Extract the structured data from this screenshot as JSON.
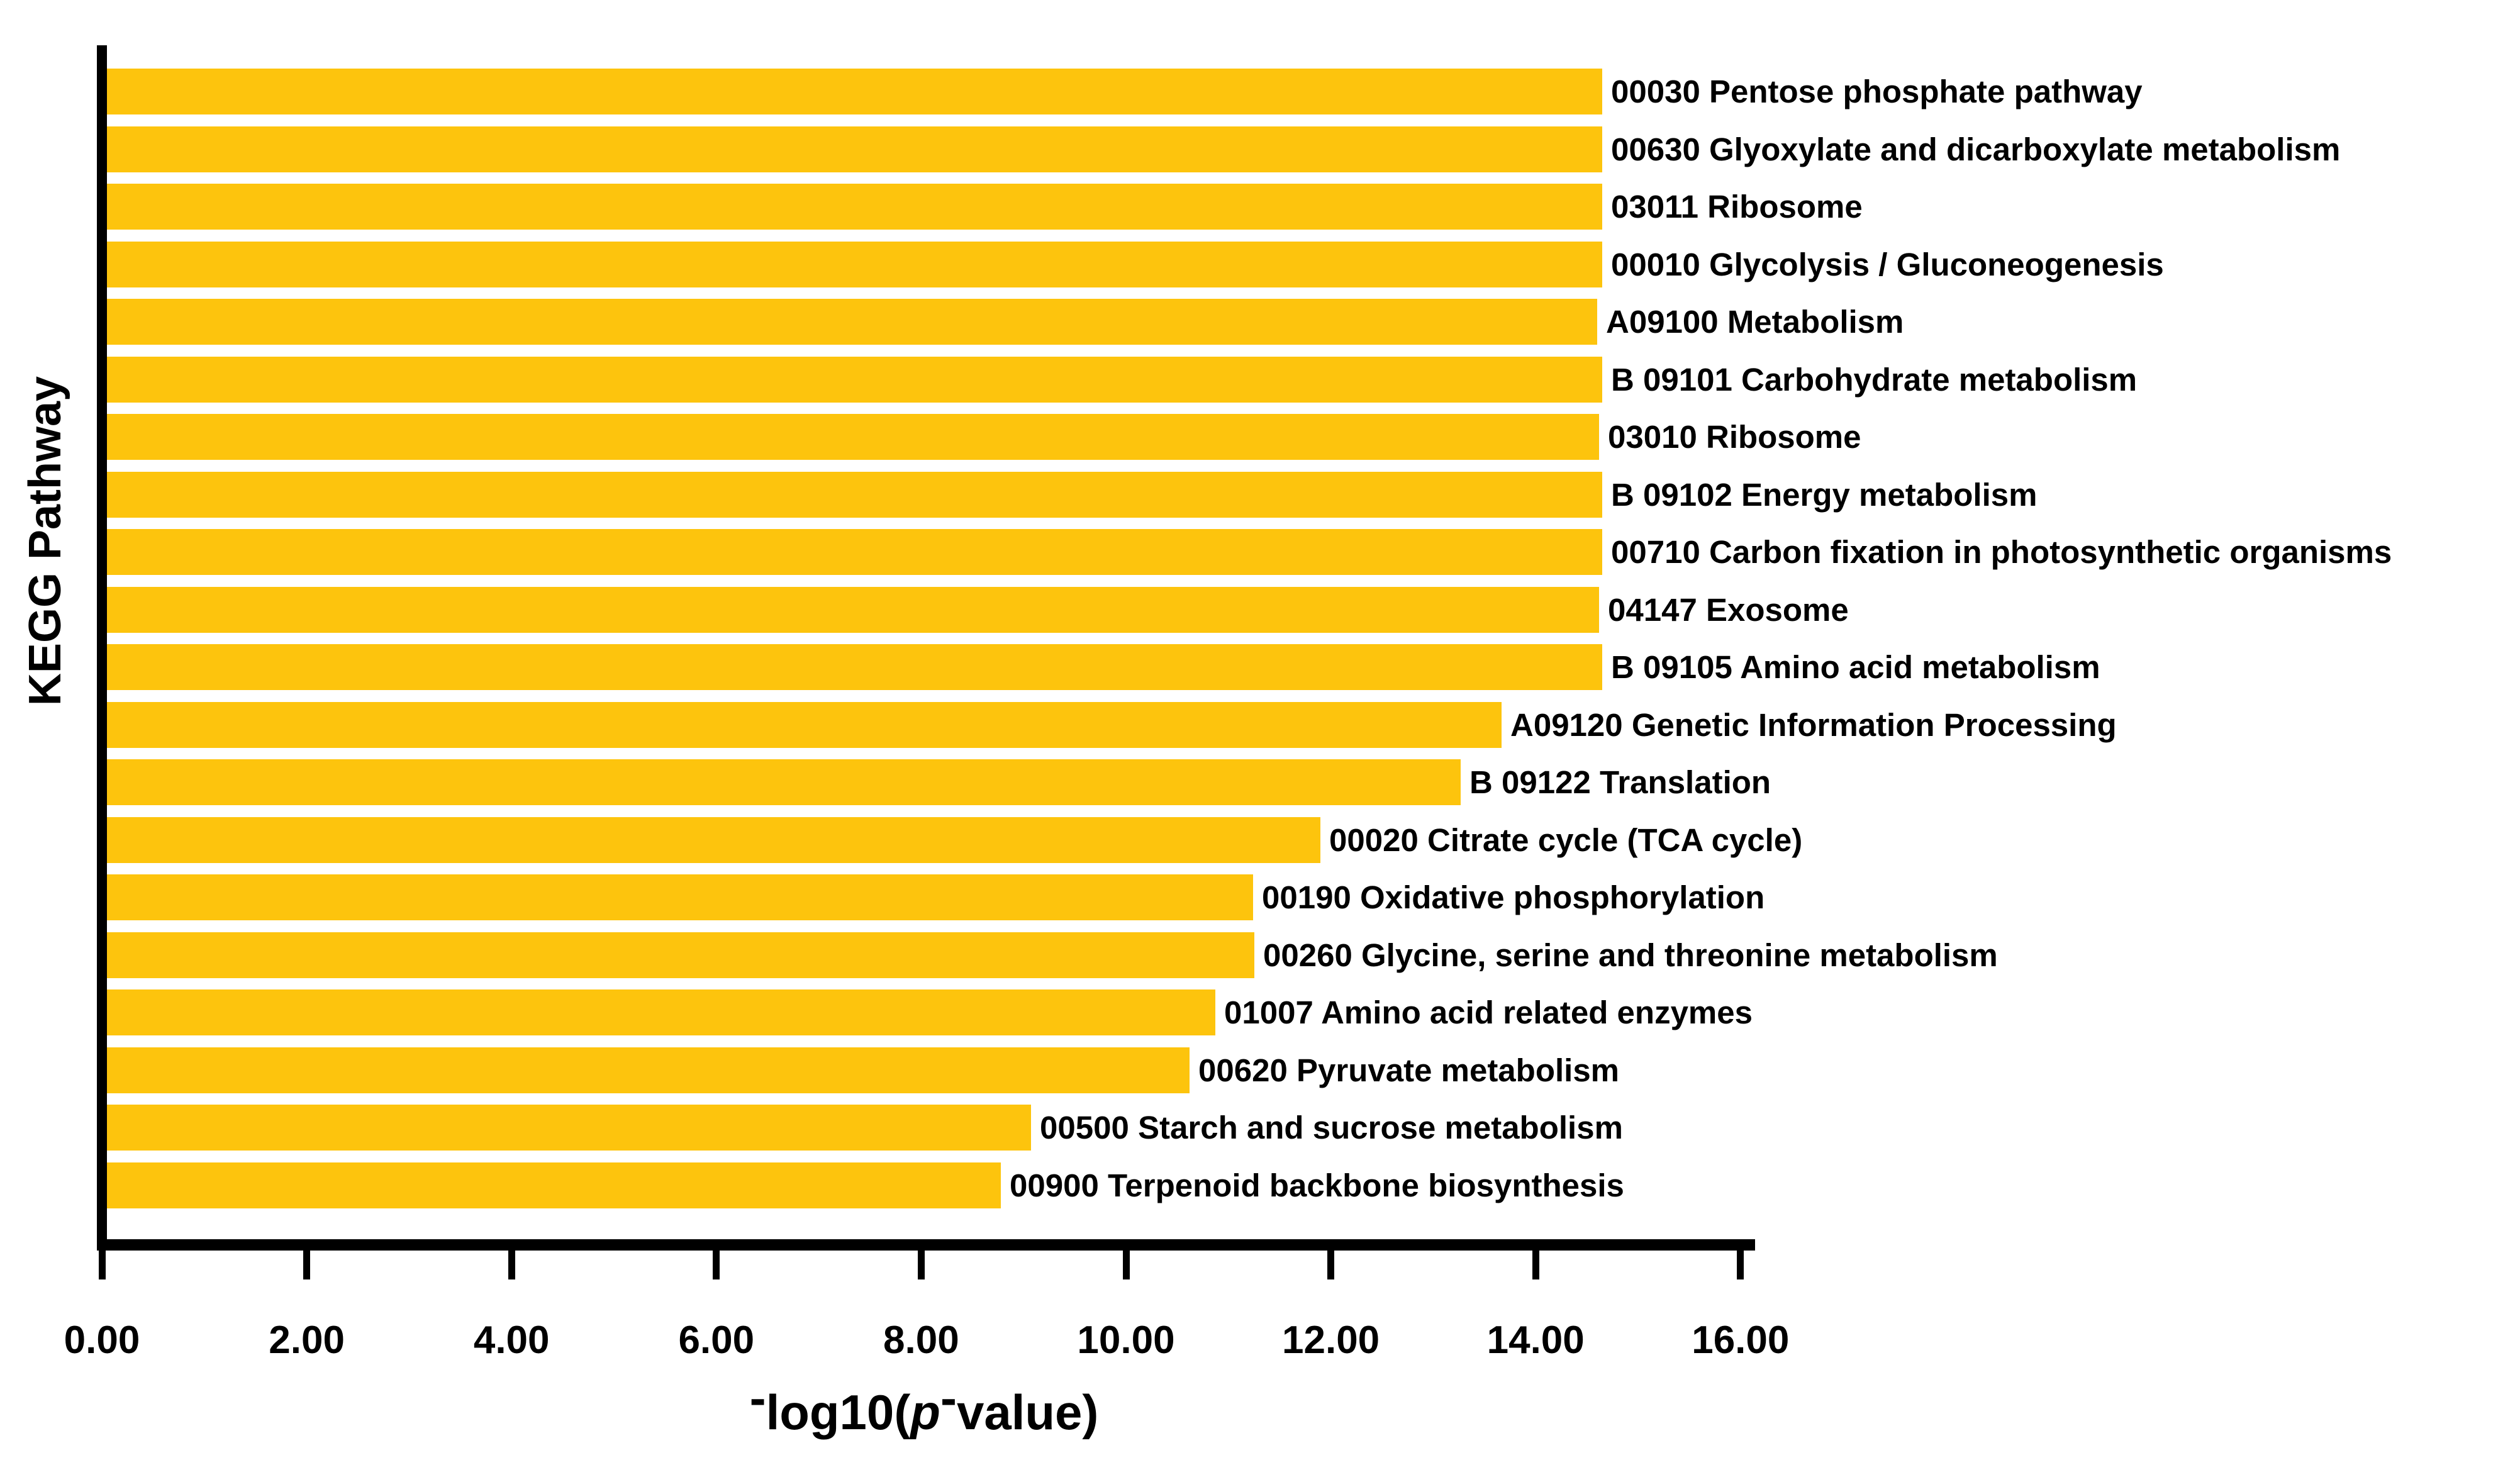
{
  "chart_data": {
    "type": "bar",
    "orientation": "horizontal",
    "title": "",
    "ylabel": "KEGG Pathway",
    "xlabel": "-log10(p-value)",
    "xlabel_parts": {
      "minus1": "-",
      "func": "log10(",
      "pvar": "p",
      "minus2": "-",
      "rest": "value)"
    },
    "xlim": [
      0,
      16
    ],
    "xticks": [
      "0.00",
      "2.00",
      "4.00",
      "6.00",
      "8.00",
      "10.00",
      "12.00",
      "14.00",
      "16.00"
    ],
    "grid": false,
    "legend": false,
    "bar_color": "#FDC40D",
    "axis_color": "#000000",
    "categories": [
      "00030 Pentose phosphate pathway",
      "00630 Glyoxylate and dicarboxylate metabolism",
      "03011 Ribosome",
      "00010 Glycolysis / Gluconeogenesis",
      "A09100 Metabolism",
      "B 09101 Carbohydrate metabolism",
      "03010 Ribosome",
      "B 09102 Energy metabolism",
      "00710 Carbon fixation in photosynthetic organisms",
      "04147 Exosome",
      "B 09105 Amino acid metabolism",
      "A09120 Genetic Information Processing",
      "B 09122 Translation",
      "00020 Citrate cycle (TCA cycle)",
      "00190 Oxidative phosphorylation",
      "00260 Glycine, serine and threonine metabolism",
      "01007 Amino acid related enzymes",
      "00620 Pyruvate metabolism",
      "00500 Starch and sucrose metabolism",
      "00900 Terpenoid backbone biosynthesis"
    ],
    "values": [
      14.65,
      14.65,
      14.65,
      14.65,
      14.6,
      14.65,
      14.62,
      14.65,
      14.65,
      14.62,
      14.65,
      13.67,
      13.27,
      11.9,
      11.24,
      11.25,
      10.87,
      10.62,
      9.07,
      8.78
    ]
  }
}
